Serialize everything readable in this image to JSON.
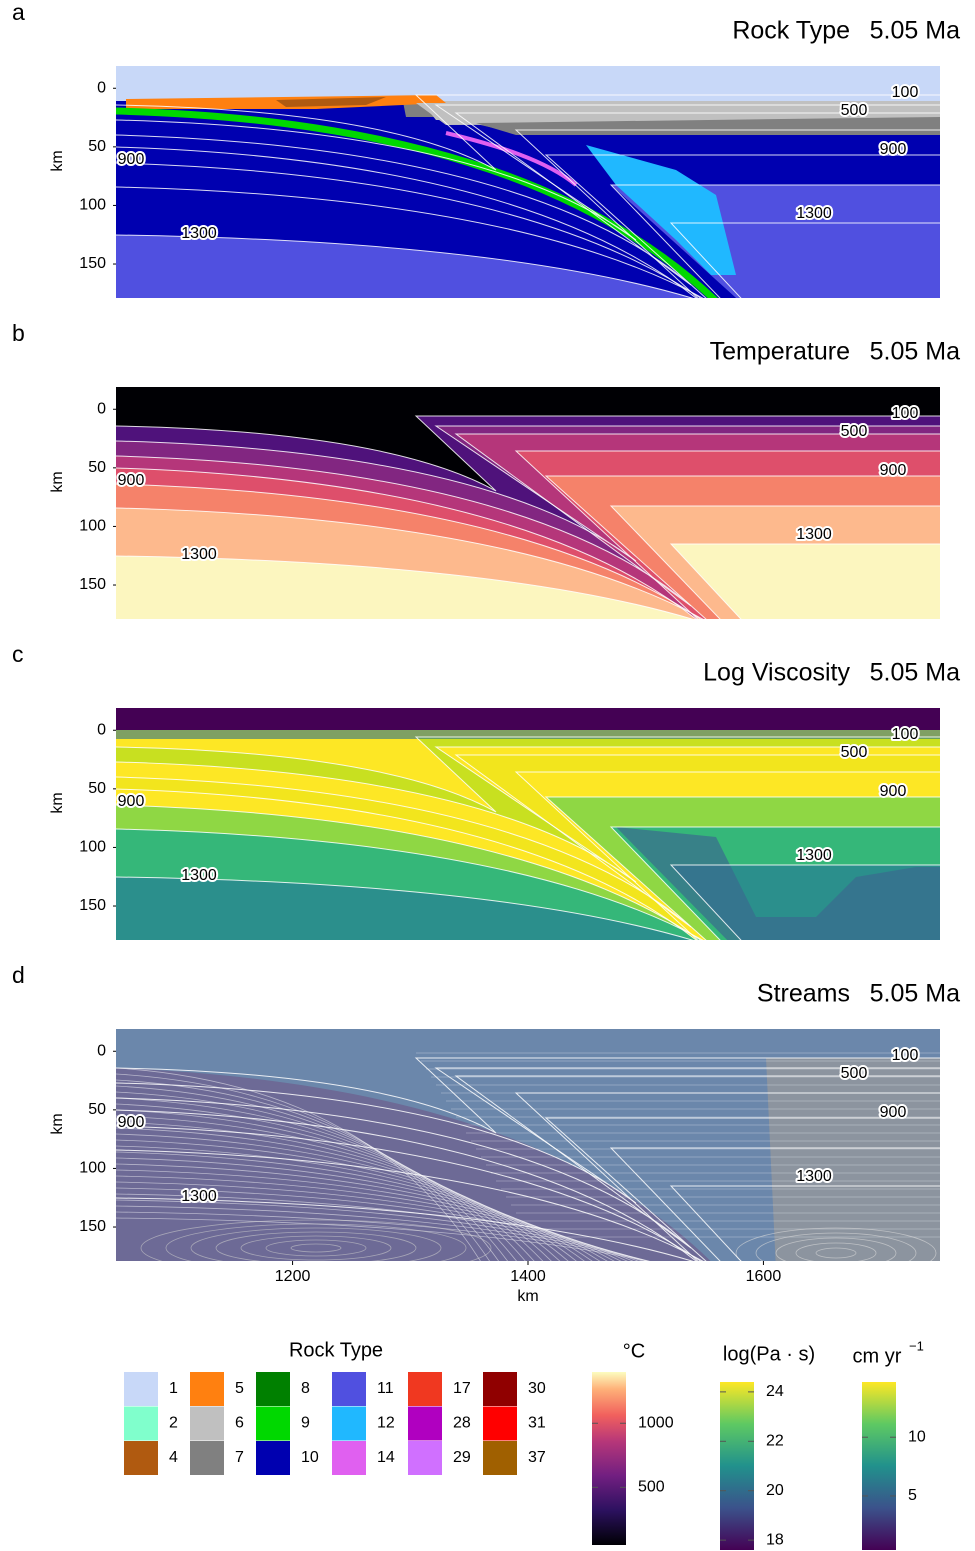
{
  "figure": {
    "panels": [
      {
        "letter": "a",
        "title": "Rock Type"
      },
      {
        "letter": "b",
        "title": "Temperature"
      },
      {
        "letter": "c",
        "title": "Log Viscosity"
      },
      {
        "letter": "d",
        "title": "Streams"
      }
    ],
    "time": "5.05 Ma",
    "ylabel": "km",
    "ylim": [
      -19,
      179
    ],
    "yticks": [
      0,
      50,
      100,
      150
    ],
    "xlabel": "km",
    "xlim": [
      1050,
      1750
    ],
    "xticks": [
      1200,
      1400,
      1600
    ],
    "isotherms": [
      100,
      500,
      900,
      1300
    ],
    "rock_legend": {
      "title": "Rock Type",
      "entries": [
        {
          "label": "1",
          "color": "#c8d8f8"
        },
        {
          "label": "2",
          "color": "#80ffcc"
        },
        {
          "label": "4",
          "color": "#b05a10"
        },
        {
          "label": "5",
          "color": "#ff8010"
        },
        {
          "label": "6",
          "color": "#c0c0c0"
        },
        {
          "label": "7",
          "color": "#808080"
        },
        {
          "label": "8",
          "color": "#008000"
        },
        {
          "label": "9",
          "color": "#00d800"
        },
        {
          "label": "10",
          "color": "#0000b0"
        },
        {
          "label": "11",
          "color": "#5050e0"
        },
        {
          "label": "12",
          "color": "#20b8ff"
        },
        {
          "label": "14",
          "color": "#e060f0"
        },
        {
          "label": "17",
          "color": "#f03820"
        },
        {
          "label": "28",
          "color": "#b000c0"
        },
        {
          "label": "29",
          "color": "#d070ff"
        },
        {
          "label": "30",
          "color": "#900000"
        },
        {
          "label": "31",
          "color": "#ff0000"
        },
        {
          "label": "37",
          "color": "#a06000"
        }
      ]
    },
    "colorbars": [
      {
        "label": "°C",
        "lim": [
          50,
          1400
        ],
        "ticks": [
          500,
          1000
        ]
      },
      {
        "label": "log(Pa · s)",
        "lim": [
          17.6,
          24.4
        ],
        "ticks": [
          18,
          20,
          22,
          24
        ]
      },
      {
        "label": "cm yr",
        "superscript": "−1",
        "lim": [
          0.4,
          14.7
        ],
        "ticks": [
          5,
          10
        ]
      }
    ]
  }
}
